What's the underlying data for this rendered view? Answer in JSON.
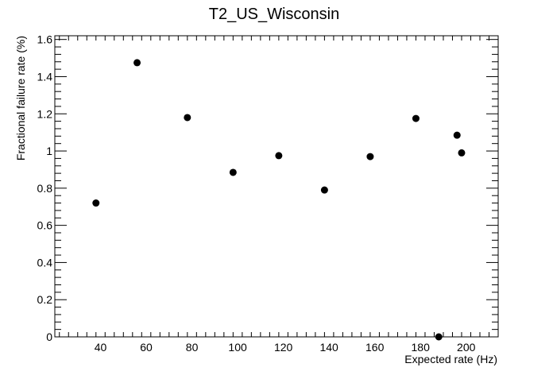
{
  "chart_data": {
    "type": "scatter",
    "title": "T2_US_Wisconsin",
    "xlabel": "Expected rate (Hz)",
    "ylabel": "Fractional failure rate (%)",
    "xlim": [
      20,
      214
    ],
    "ylim": [
      0,
      1.62
    ],
    "x_ticks": [
      40,
      60,
      80,
      100,
      120,
      140,
      160,
      180,
      200
    ],
    "x_tick_labels": [
      "40",
      "60",
      "80",
      "100",
      "120",
      "140",
      "160",
      "180",
      "200"
    ],
    "y_ticks": [
      0,
      0.2,
      0.4,
      0.6,
      0.8,
      1.0,
      1.2,
      1.4,
      1.6
    ],
    "y_tick_labels": [
      "0",
      "0.2",
      "0.4",
      "0.6",
      "0.8",
      "1",
      "1.2",
      "1.4",
      "1.6"
    ],
    "grid": false,
    "legend": "none",
    "marker_color": "#000000",
    "points": [
      {
        "x": 38,
        "y": 0.72
      },
      {
        "x": 56,
        "y": 1.475
      },
      {
        "x": 78,
        "y": 1.18
      },
      {
        "x": 98,
        "y": 0.885
      },
      {
        "x": 118,
        "y": 0.975
      },
      {
        "x": 138,
        "y": 0.79
      },
      {
        "x": 158,
        "y": 0.97
      },
      {
        "x": 178,
        "y": 1.175
      },
      {
        "x": 188,
        "y": 0.0
      },
      {
        "x": 196,
        "y": 1.085
      },
      {
        "x": 198,
        "y": 0.99
      }
    ]
  }
}
